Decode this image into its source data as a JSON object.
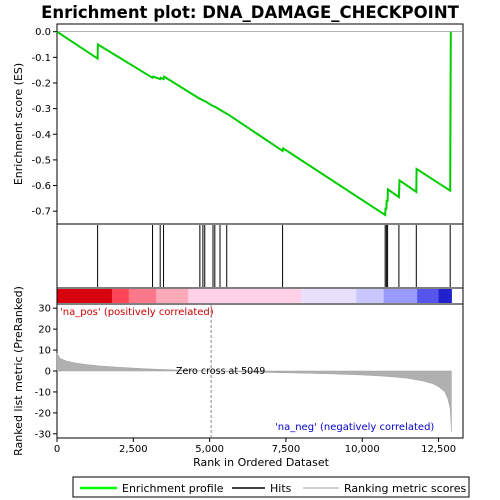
{
  "chart_data": {
    "type": "line",
    "title": "Enrichment plot: DNA_DAMAGE_CHECKPOINT",
    "top_panel": {
      "ylabel": "Enrichment score (ES)",
      "ylim": [
        -0.75,
        0.03
      ],
      "yticks": [
        "0.0",
        "-0.1",
        "-0.2",
        "-0.3",
        "-0.4",
        "-0.5",
        "-0.6",
        "-0.7"
      ],
      "ytick_values": [
        0.0,
        -0.1,
        -0.2,
        -0.3,
        -0.4,
        -0.5,
        -0.6,
        -0.7
      ],
      "grid": false,
      "series": [
        {
          "name": "Enrichment profile",
          "color": "#00cc00",
          "x": [
            0,
            1330,
            1340,
            3130,
            3150,
            3380,
            3400,
            3490,
            3510,
            4680,
            4700,
            4780,
            4790,
            4840,
            4850,
            5110,
            5120,
            5170,
            5180,
            5340,
            5350,
            5560,
            5570,
            7390,
            7410,
            10750,
            10760,
            10790,
            10800,
            10830,
            10840,
            11200,
            11220,
            11770,
            11780,
            12880,
            12900
          ],
          "y": [
            0.0,
            -0.105,
            -0.05,
            -0.18,
            -0.175,
            -0.185,
            -0.18,
            -0.185,
            -0.175,
            -0.262,
            -0.262,
            -0.268,
            -0.268,
            -0.271,
            -0.271,
            -0.29,
            -0.29,
            -0.293,
            -0.293,
            -0.305,
            -0.305,
            -0.32,
            -0.32,
            -0.465,
            -0.455,
            -0.715,
            -0.69,
            -0.69,
            -0.66,
            -0.66,
            -0.615,
            -0.645,
            -0.58,
            -0.625,
            -0.535,
            -0.62,
            0.0
          ]
        }
      ]
    },
    "hits": [
      1330,
      3130,
      3380,
      3490,
      4680,
      4780,
      4840,
      5110,
      5170,
      5340,
      5560,
      7390,
      10750,
      10790,
      10830,
      11200,
      11770,
      12880
    ],
    "heatmap_colors": [
      "#d8000f",
      "#ff4455",
      "#ff7788",
      "#ffaabb",
      "#ffd0e8",
      "#e8e0ff",
      "#c8c8ff",
      "#9a9aff",
      "#5555ee",
      "#2222cc"
    ],
    "bottom_panel": {
      "ylabel": "Ranked list metric (PreRanked)",
      "ylim": [
        -32,
        32
      ],
      "yticks": [
        "30",
        "20",
        "10",
        "0",
        "-10",
        "-20",
        "-30"
      ],
      "ytick_values": [
        30,
        20,
        10,
        0,
        -10,
        -20,
        -30
      ],
      "metric_profile": {
        "x": [
          0,
          100,
          300,
          600,
          1000,
          1500,
          2000,
          2500,
          3000,
          3500,
          4000,
          4500,
          5049,
          5500,
          6000,
          7000,
          8000,
          9000,
          10000,
          10500,
          11000,
          11500,
          12000,
          12300,
          12500,
          12700,
          12800,
          12880,
          12920
        ],
        "y": [
          8.5,
          6.0,
          4.8,
          3.8,
          3.0,
          2.3,
          1.8,
          1.4,
          1.0,
          0.7,
          0.45,
          0.2,
          0.0,
          -0.2,
          -0.4,
          -0.7,
          -1.0,
          -1.4,
          -1.9,
          -2.3,
          -2.8,
          -3.5,
          -4.8,
          -6.0,
          -7.5,
          -10.0,
          -13.0,
          -18.0,
          -29.0
        ]
      },
      "zero_cross_label": "Zero cross at 5049",
      "zero_cross": 5049,
      "pos_label": "'na_pos' (positively correlated)",
      "neg_label": "'na_neg' (negatively correlated)"
    },
    "xlabel": "Rank in Ordered Dataset",
    "xlim": [
      0,
      13300
    ],
    "xticks": [
      "0",
      "2,500",
      "5,000",
      "7,500",
      "10,000",
      "12,500"
    ],
    "xtick_values": [
      0,
      2500,
      5000,
      7500,
      10000,
      12500
    ],
    "legend": {
      "placement": "bottom",
      "items": [
        {
          "label": "Enrichment profile",
          "color": "#00ff00"
        },
        {
          "label": "Hits",
          "color": "#000000"
        },
        {
          "label": "Ranking metric scores",
          "color": "#c0c0c0"
        }
      ]
    }
  }
}
